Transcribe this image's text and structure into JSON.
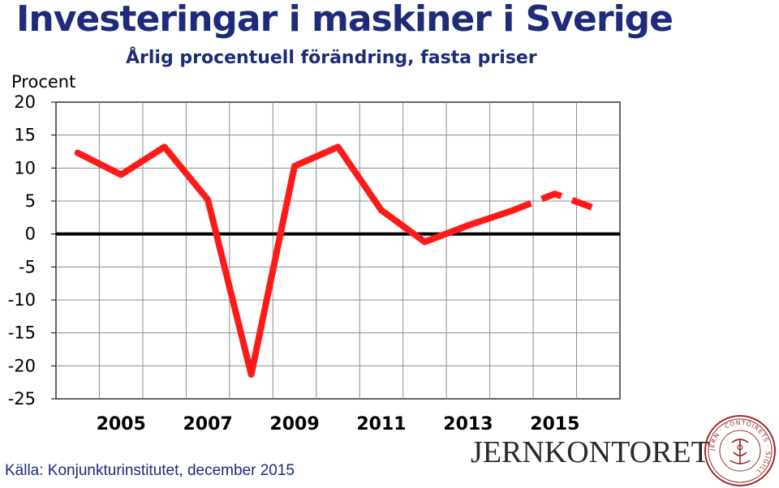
{
  "title": "Investeringar i maskiner i Sverige",
  "subtitle": "Årlig procentuell förändring, fasta priser",
  "chart_data": {
    "type": "line",
    "ylabel": "Procent",
    "xlabel": "",
    "x": [
      2004,
      2005,
      2006,
      2007,
      2008,
      2009,
      2010,
      2011,
      2012,
      2013,
      2014,
      2015,
      2016
    ],
    "x_tick_labels": [
      "2005",
      "2007",
      "2009",
      "2011",
      "2013",
      "2015"
    ],
    "y_tick_labels": [
      "20",
      "15",
      "10",
      "5",
      "0",
      "-5",
      "-10",
      "-15",
      "-20",
      "-25"
    ],
    "ylim": [
      -25,
      20
    ],
    "grid": true,
    "series": [
      {
        "style": "solid",
        "color": "#ff1a1a",
        "x": [
          2004,
          2005,
          2006,
          2007,
          2008,
          2009,
          2010,
          2011,
          2012,
          2013,
          2014
        ],
        "values": [
          12.3,
          9.0,
          13.2,
          5.2,
          -21.3,
          10.3,
          13.2,
          3.6,
          -1.2,
          1.3,
          3.5
        ]
      },
      {
        "style": "dashed",
        "color": "#ff1a1a",
        "x": [
          2014,
          2015,
          2016
        ],
        "values": [
          3.5,
          6.1,
          3.7
        ]
      }
    ]
  },
  "footer": {
    "source": "Källa: Konjunkturinstitutet, december 2015",
    "brand": "JERNKONTORET",
    "seal_text": "JERN · CONTOIRETS · SIGILL"
  }
}
